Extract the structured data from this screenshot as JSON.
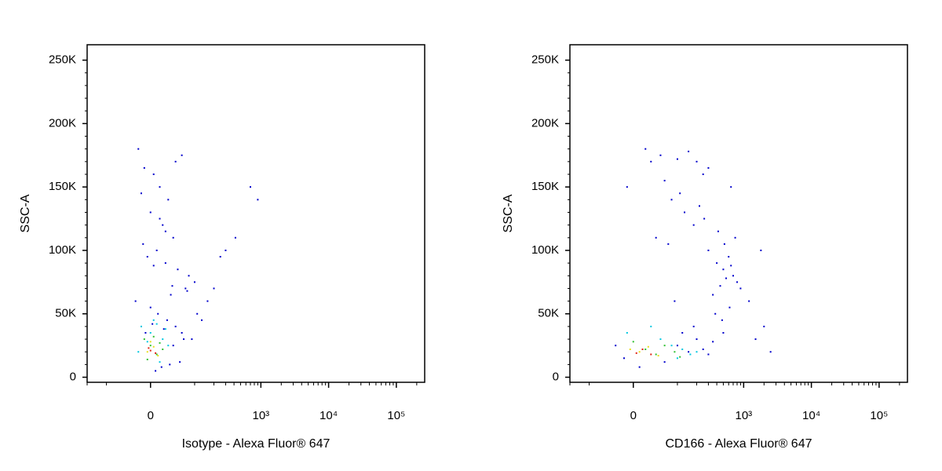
{
  "chart_data": [
    {
      "type": "scatter",
      "x_label": "Isotype - Alexa Fluor® 647",
      "y_label": "SSC-A",
      "xscale": "biexponential",
      "linear_width": 47,
      "xlim": [
        -200,
        262144
      ],
      "ylim": [
        -4000,
        262144
      ],
      "xticks": [
        0,
        {
          "value": 1000,
          "label": "10³"
        },
        {
          "value": 10000,
          "label": "10⁴"
        },
        {
          "value": 100000,
          "label": "10⁵"
        }
      ],
      "xminorticks": [
        -200,
        -100,
        100,
        200,
        300,
        400,
        500,
        600,
        700,
        800,
        900,
        2000,
        3000,
        4000,
        5000,
        6000,
        7000,
        8000,
        9000,
        20000,
        30000,
        40000,
        50000,
        60000,
        70000,
        80000,
        90000,
        200000
      ],
      "yticks": [
        0,
        {
          "value": 50000,
          "label": "50K"
        },
        {
          "value": 100000,
          "label": "100K"
        },
        {
          "value": 150000,
          "label": "150K"
        },
        {
          "value": 200000,
          "label": "200K"
        },
        {
          "value": 250000,
          "label": "250K"
        }
      ],
      "yminorticks": [
        10000,
        20000,
        30000,
        40000,
        60000,
        70000,
        80000,
        90000,
        110000,
        120000,
        130000,
        140000,
        160000,
        170000,
        180000,
        190000,
        210000,
        220000,
        230000,
        240000
      ],
      "series": [
        {
          "color": "#0000cc",
          "x": [
            -20,
            -10,
            5,
            15,
            30,
            45,
            60,
            -15,
            0,
            20,
            40,
            10,
            -5,
            25,
            50,
            80,
            100,
            70,
            35,
            -25,
            0,
            12,
            28,
            45,
            60,
            90,
            130,
            160,
            200,
            250,
            8,
            18,
            33,
            55,
            -8,
            3,
            22,
            40,
            65,
            110,
            300,
            420,
            700,
            900,
            15,
            25,
            -12,
            5,
            38,
            75
          ],
          "y": [
            180000,
            165000,
            160000,
            150000,
            140000,
            170000,
            175000,
            145000,
            130000,
            120000,
            110000,
            100000,
            95000,
            90000,
            85000,
            80000,
            75000,
            70000,
            65000,
            60000,
            55000,
            50000,
            45000,
            40000,
            35000,
            30000,
            45000,
            60000,
            70000,
            95000,
            5000,
            8000,
            10000,
            12000,
            35000,
            42000,
            38000,
            25000,
            30000,
            50000,
            100000,
            110000,
            150000,
            140000,
            125000,
            115000,
            105000,
            88000,
            72000,
            68000
          ]
        },
        {
          "color": "#00c8e0",
          "x": [
            -15,
            0,
            10,
            20,
            -5,
            15,
            30,
            5,
            -20,
            25
          ],
          "y": [
            40000,
            35000,
            42000,
            30000,
            28000,
            12000,
            25000,
            45000,
            20000,
            38000
          ]
        },
        {
          "color": "#30c030",
          "x": [
            -10,
            0,
            10,
            20,
            -5,
            5,
            15
          ],
          "y": [
            30000,
            25000,
            18000,
            22000,
            14000,
            32000,
            27000
          ]
        },
        {
          "color": "#e8e020",
          "x": [
            -5,
            5,
            12,
            0
          ],
          "y": [
            20000,
            24000,
            17000,
            28000
          ]
        },
        {
          "color": "#e02010",
          "x": [
            0,
            8,
            -3
          ],
          "y": [
            21000,
            19000,
            23000
          ]
        }
      ]
    },
    {
      "type": "scatter",
      "x_label": "CD166 - Alexa Fluor® 647",
      "y_label": "SSC-A",
      "xscale": "biexponential",
      "linear_width": 47,
      "xlim": [
        -200,
        262144
      ],
      "ylim": [
        -4000,
        262144
      ],
      "xticks": [
        0,
        {
          "value": 1000,
          "label": "10³"
        },
        {
          "value": 10000,
          "label": "10⁴"
        },
        {
          "value": 100000,
          "label": "10⁵"
        }
      ],
      "xminorticks": [
        -200,
        -100,
        100,
        200,
        300,
        400,
        500,
        600,
        700,
        800,
        900,
        2000,
        3000,
        4000,
        5000,
        6000,
        7000,
        8000,
        9000,
        20000,
        30000,
        40000,
        50000,
        60000,
        70000,
        80000,
        90000,
        200000
      ],
      "yticks": [
        0,
        {
          "value": 50000,
          "label": "50K"
        },
        {
          "value": 100000,
          "label": "100K"
        },
        {
          "value": 150000,
          "label": "150K"
        },
        {
          "value": 200000,
          "label": "200K"
        },
        {
          "value": 250000,
          "label": "250K"
        }
      ],
      "yminorticks": [
        10000,
        20000,
        30000,
        40000,
        60000,
        70000,
        80000,
        90000,
        110000,
        120000,
        130000,
        140000,
        160000,
        170000,
        180000,
        190000,
        210000,
        220000,
        230000,
        240000
      ],
      "series": [
        {
          "color": "#0000cc",
          "x": [
            20,
            50,
            100,
            150,
            200,
            250,
            300,
            -10,
            80,
            130,
            180,
            40,
            70,
            110,
            220,
            260,
            300,
            400,
            500,
            600,
            700,
            800,
            900,
            1200,
            2000,
            350,
            450,
            550,
            650,
            750,
            420,
            520,
            620,
            380,
            480,
            1500,
            1800,
            2500,
            100,
            150,
            200,
            250,
            300,
            350,
            -30,
            -15,
            10,
            60,
            120,
            180,
            30,
            60,
            90,
            500,
            650
          ],
          "y": [
            180000,
            175000,
            172000,
            178000,
            170000,
            160000,
            165000,
            150000,
            140000,
            130000,
            120000,
            110000,
            105000,
            145000,
            135000,
            125000,
            100000,
            90000,
            85000,
            95000,
            80000,
            75000,
            70000,
            60000,
            40000,
            65000,
            72000,
            78000,
            88000,
            110000,
            115000,
            105000,
            55000,
            50000,
            45000,
            30000,
            100000,
            20000,
            25000,
            20000,
            30000,
            22000,
            18000,
            28000,
            25000,
            15000,
            8000,
            12000,
            35000,
            40000,
            170000,
            155000,
            60000,
            35000,
            150000
          ]
        },
        {
          "color": "#00c8e0",
          "x": [
            50,
            80,
            120,
            160,
            -10,
            30,
            200,
            100
          ],
          "y": [
            30000,
            25000,
            22000,
            18000,
            35000,
            40000,
            20000,
            15000
          ]
        },
        {
          "color": "#30c030",
          "x": [
            20,
            40,
            60,
            90,
            0,
            110
          ],
          "y": [
            22000,
            18000,
            25000,
            20000,
            28000,
            16000
          ]
        },
        {
          "color": "#e8e020",
          "x": [
            10,
            25,
            45,
            -5
          ],
          "y": [
            20000,
            24000,
            17000,
            22000
          ]
        },
        {
          "color": "#e02010",
          "x": [
            5,
            15,
            30
          ],
          "y": [
            19000,
            22000,
            18000
          ]
        }
      ]
    }
  ]
}
